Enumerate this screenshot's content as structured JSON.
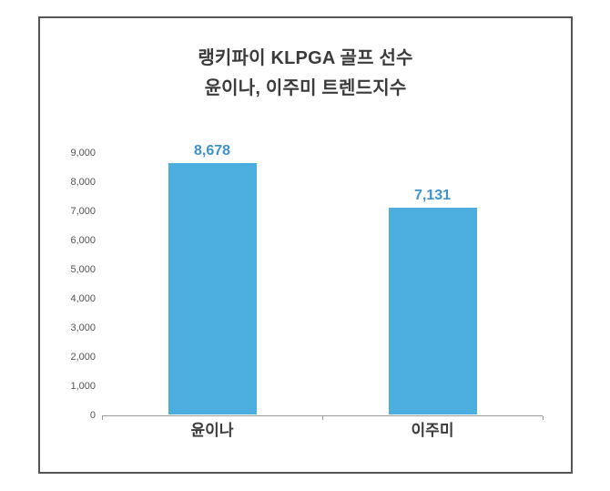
{
  "chart_data": {
    "type": "bar",
    "title": "랭키파이 KLPGA 골프 선수 윤이나, 이주미 트렌드지수",
    "title_lines": [
      "랭키파이 KLPGA 골프 선수",
      "윤이나, 이주미 트렌드지수"
    ],
    "categories": [
      "윤이나",
      "이주미"
    ],
    "values": [
      8678,
      7131
    ],
    "value_labels": [
      "8,678",
      "7,131"
    ],
    "xlabel": "",
    "ylabel": "",
    "ylim": [
      0,
      9000
    ],
    "ytick_values": [
      0,
      1000,
      2000,
      3000,
      4000,
      5000,
      6000,
      7000,
      8000,
      9000
    ],
    "ytick_labels": [
      "0",
      "1,000",
      "2,000",
      "3,000",
      "4,000",
      "5,000",
      "6,000",
      "7,000",
      "8,000",
      "9,000"
    ],
    "grid": false,
    "legend": "none",
    "colors": {
      "bar": "#4BAEDE",
      "value_label": "#3E93CF",
      "title": "#3B3B3B",
      "category_label": "#3B3B3B",
      "tick_label": "#525252",
      "axis_line": "#9B9B9B",
      "frame_border": "#555555",
      "background": "#FFFFFF"
    }
  }
}
